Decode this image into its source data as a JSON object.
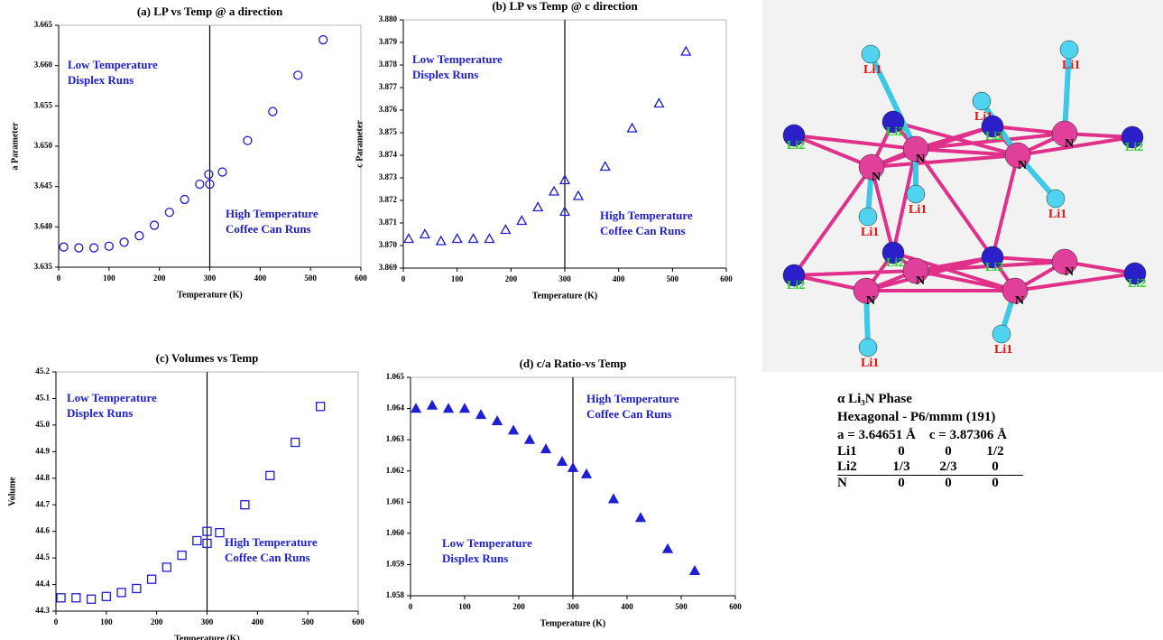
{
  "chart_data": [
    {
      "type": "scatter",
      "title": "(a) LP vs Temp @ a direction",
      "x_label": "Temperature (K)",
      "y_label": "a Parameter",
      "marker": "circle",
      "color": "#1e1ed2",
      "xlim": [
        0,
        600
      ],
      "xticks": [
        0,
        100,
        200,
        300,
        400,
        500,
        600
      ],
      "ylim": [
        3.635,
        3.665
      ],
      "yticks": [
        3.635,
        {
          "value": 3.64,
          "label": "3.640"
        },
        3.645,
        {
          "value": 3.65,
          "label": "3.650"
        },
        3.655,
        {
          "value": 3.66,
          "label": "3.660"
        },
        3.665
      ],
      "vline": 300,
      "annotations": [
        [
          "Low Temperature",
          "Displex Runs"
        ],
        [
          "High Temperature",
          "Coffee Can Runs"
        ]
      ],
      "x": [
        10,
        40,
        70,
        100,
        130,
        160,
        190,
        220,
        250,
        280,
        298,
        300,
        325,
        375,
        425,
        475,
        525
      ],
      "values": [
        3.6375,
        3.6374,
        3.6374,
        3.6376,
        3.6381,
        3.6389,
        3.6402,
        3.6418,
        3.6434,
        3.6453,
        3.6465,
        3.6453,
        3.6468,
        3.6507,
        3.6543,
        3.6588,
        3.6632
      ]
    },
    {
      "type": "scatter",
      "title": "(b) LP vs Temp @ c direction",
      "x_label": "Temperature (K)",
      "y_label": "c Parameter",
      "marker": "triangle",
      "color": "#1e1ed2",
      "xlim": [
        0,
        600
      ],
      "xticks": [
        0,
        100,
        200,
        300,
        400,
        500,
        600
      ],
      "ylim": [
        3.869,
        3.88
      ],
      "yticks": [
        3.869,
        {
          "value": 3.87,
          "label": "3.870"
        },
        3.871,
        3.872,
        3.873,
        3.874,
        3.875,
        3.876,
        3.877,
        3.878,
        3.879,
        {
          "value": 3.88,
          "label": "3.880"
        }
      ],
      "vline": 300,
      "annotations": [
        [
          "Low Temperature",
          "Displex Runs"
        ],
        [
          "High Temperature",
          "Coffee Can Runs"
        ]
      ],
      "x": [
        10,
        40,
        70,
        100,
        130,
        160,
        190,
        220,
        250,
        280,
        300,
        300,
        325,
        375,
        425,
        475,
        525
      ],
      "values": [
        3.8703,
        3.8705,
        3.8702,
        3.8703,
        3.8703,
        3.8703,
        3.8707,
        3.8711,
        3.8717,
        3.8724,
        3.8729,
        3.8715,
        3.8722,
        3.8735,
        3.8752,
        3.8763,
        3.8786
      ]
    },
    {
      "type": "scatter",
      "title": "(c) Volumes vs Temp",
      "x_label": "Temperature (K)",
      "y_label": "Volume",
      "marker": "square",
      "color": "#1e1ed2",
      "xlim": [
        0,
        600
      ],
      "xticks": [
        0,
        100,
        200,
        300,
        400,
        500,
        600
      ],
      "ylim": [
        44.3,
        45.2
      ],
      "yticks": [
        44.3,
        44.4,
        44.5,
        44.6,
        44.7,
        44.8,
        44.9,
        {
          "value": 45,
          "label": "45.0"
        },
        45.1,
        45.2
      ],
      "vline": 300,
      "annotations": [
        [
          "Low Temperature",
          "Displex Runs"
        ],
        [
          "High Temperature",
          "Coffee Can Runs"
        ]
      ],
      "x": [
        10,
        40,
        70,
        100,
        130,
        160,
        190,
        220,
        250,
        280,
        300,
        300,
        325,
        375,
        425,
        475,
        525
      ],
      "values": [
        44.35,
        44.35,
        44.345,
        44.355,
        44.37,
        44.385,
        44.42,
        44.465,
        44.51,
        44.565,
        44.6,
        44.555,
        44.595,
        44.7,
        44.81,
        44.935,
        45.07
      ]
    },
    {
      "type": "scatter",
      "title": "(d) c/a Ratio-vs Temp",
      "x_label": "Temperature (K)",
      "marker": "triangle-filled",
      "color": "#1e1ed2",
      "xlim": [
        0,
        600
      ],
      "xticks": [
        0,
        100,
        200,
        300,
        400,
        500,
        600
      ],
      "ylim": [
        1.058,
        1.065
      ],
      "yticks": [
        1.058,
        1.059,
        {
          "value": 1.06,
          "label": "1.060"
        },
        1.061,
        1.062,
        1.063,
        1.064,
        1.065
      ],
      "vline": 300,
      "annotations": [
        [
          "High Temperature",
          "Coffee Can Runs"
        ],
        [
          "Low Temperature",
          "Displex Runs"
        ]
      ],
      "x": [
        10,
        40,
        70,
        100,
        130,
        160,
        190,
        220,
        250,
        280,
        300,
        325,
        375,
        425,
        475,
        525
      ],
      "values": [
        1.064,
        1.0641,
        1.064,
        1.064,
        1.0638,
        1.0636,
        1.0633,
        1.063,
        1.0627,
        1.0623,
        1.0621,
        1.0619,
        1.0611,
        1.0605,
        1.0595,
        1.0588
      ]
    }
  ],
  "structure": {
    "atoms": [
      "Li1",
      "Li1",
      "Li1",
      "Li1",
      "Li1",
      "Li1",
      "Li1",
      "Li1",
      "N",
      "N",
      "N",
      "N",
      "N",
      "N",
      "N",
      "N",
      "Li2",
      "Li2",
      "Li2",
      "Li2",
      "Li2",
      "Li2",
      "Li2",
      "Li2"
    ]
  },
  "phase_table": {
    "title": "α Li₃N Phase",
    "group": "Hexagonal - P6/mmm (191)",
    "a": "a = 3.64651 Å",
    "c": "c = 3.87306 Å",
    "rows": [
      [
        "Li1",
        "0",
        "0",
        "1/2"
      ],
      [
        "Li2",
        "1/3",
        "2/3",
        "0"
      ],
      [
        "N",
        "0",
        "0",
        "0"
      ]
    ]
  }
}
